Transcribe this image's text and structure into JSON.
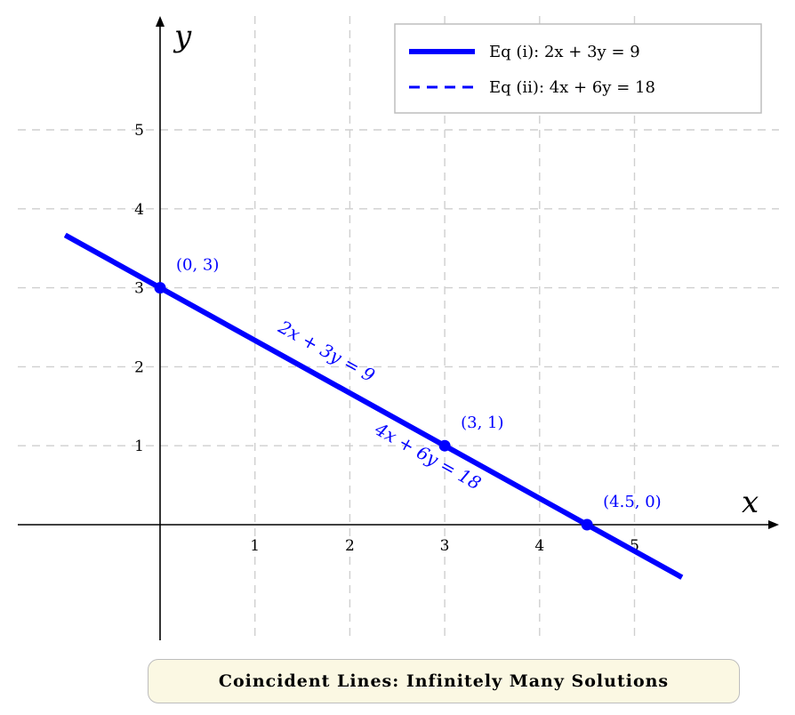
{
  "chart_data": {
    "type": "line",
    "title": "",
    "xlabel": "x",
    "ylabel": "y",
    "xlim": [
      -1.5,
      6.5
    ],
    "ylim": [
      -1.5,
      6.5
    ],
    "x_ticks": [
      1,
      2,
      3,
      4,
      5
    ],
    "y_ticks": [
      1,
      2,
      3,
      4,
      5
    ],
    "x_tick_labels": [
      "1",
      "2",
      "3",
      "4",
      "5"
    ],
    "y_tick_labels": [
      "1",
      "2",
      "3",
      "4",
      "5"
    ],
    "grid": true,
    "legend_position": "top-right",
    "series": [
      {
        "name": "Eq (i): 2x + 3y = 9",
        "style": "solid",
        "color": "#0000ff",
        "x": [
          -1,
          5.5
        ],
        "y": [
          3.667,
          -0.667
        ]
      },
      {
        "name": "Eq (ii): 4x + 6y = 18",
        "style": "dashed",
        "color": "#0000ff",
        "x": [
          -1,
          5.5
        ],
        "y": [
          3.667,
          -0.667
        ]
      }
    ],
    "points": [
      {
        "x": 0,
        "y": 3,
        "label": "(0, 3)"
      },
      {
        "x": 3,
        "y": 1,
        "label": "(3, 1)"
      },
      {
        "x": 4.5,
        "y": 0,
        "label": "(4.5, 0)"
      }
    ],
    "annotations": [
      "2x + 3y = 9",
      "4x + 6y = 18"
    ]
  },
  "caption": "Coincident Lines: Infinitely Many Solutions"
}
